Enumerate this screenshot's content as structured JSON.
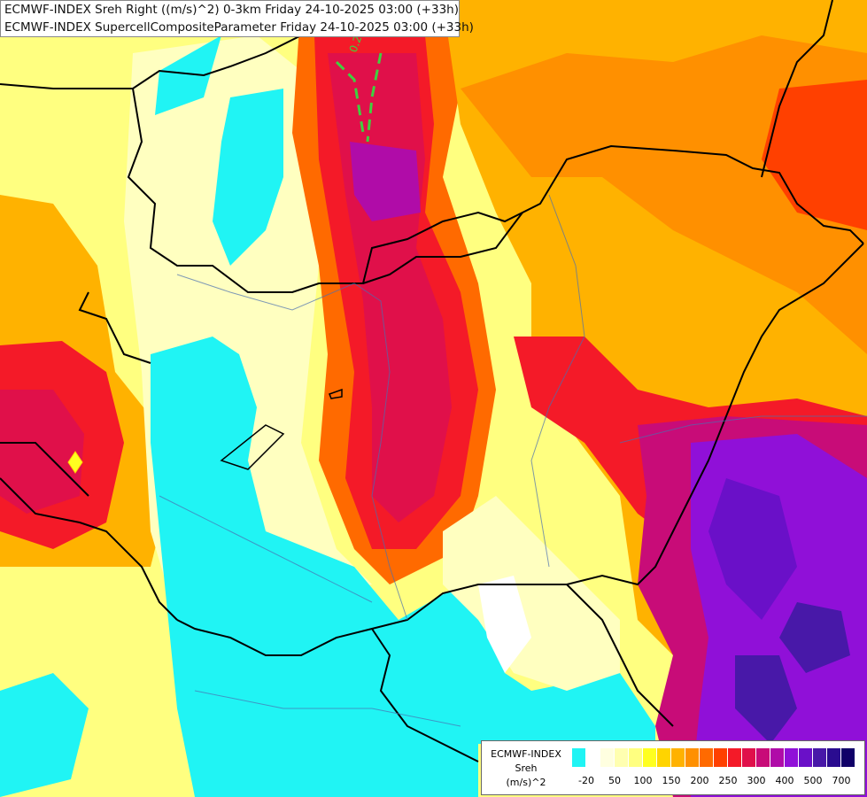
{
  "titles": {
    "line1": "ECMWF-INDEX Sreh Right ((m/s)^2) 0-3km Friday 24-10-2025 03:00 (+33h)",
    "line2": "ECMWF-INDEX SupercellCompositeParameter Friday 24-10-2025 03:00 (+33h)"
  },
  "contour_label": "0.2",
  "legend": {
    "title1": "ECMWF-INDEX",
    "title2": "Sreh",
    "title3": "(m/s)^2",
    "ticks": [
      "-20",
      "50",
      "100",
      "150",
      "200",
      "250",
      "300",
      "400",
      "500",
      "700"
    ],
    "colors": [
      "#20f4f4",
      "#ffffff",
      "#ffffe0",
      "#ffffb0",
      "#ffff80",
      "#ffff20",
      "#ffd400",
      "#ffb200",
      "#ff9000",
      "#ff6a00",
      "#ff4000",
      "#f41a28",
      "#e0104a",
      "#c80c78",
      "#b00ca8",
      "#9010d8",
      "#6a10c8",
      "#4818a8",
      "#2a0c90",
      "#100068"
    ]
  }
}
